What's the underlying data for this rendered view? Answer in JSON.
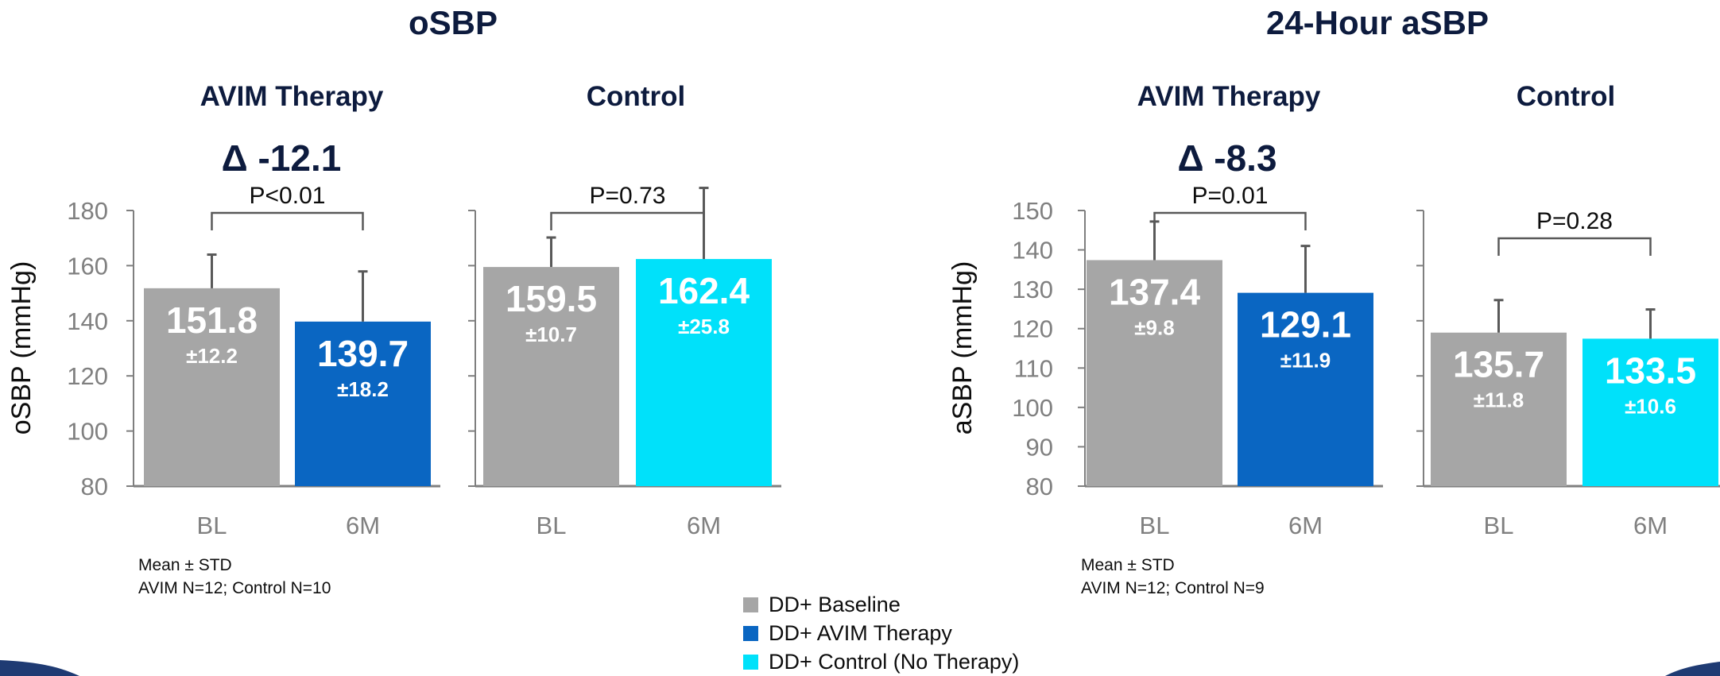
{
  "colors": {
    "baseline": "#A6A6A6",
    "avim": "#0A66C2",
    "control": "#00E1FA",
    "title": "#0D1B3E",
    "axis": "#7F7F7F",
    "tick": "#808080",
    "bracket": "#595959",
    "error": "#595959",
    "swoosh": "#1F3B73"
  },
  "sections": [
    {
      "title": "oSBP",
      "ylabel": "oSBP (mmHg)",
      "footnote": [
        "Mean  ±  STD",
        "AVIM N=12; Control N=10"
      ]
    },
    {
      "title": "24-Hour aSBP",
      "ylabel": "aSBP (mmHg)",
      "footnote": [
        "Mean  ±  STD",
        "AVIM N=12; Control N=9"
      ]
    }
  ],
  "legend": {
    "items": [
      {
        "label": "DD+ Baseline",
        "color": "#A6A6A6"
      },
      {
        "label": "DD+ AVIM Therapy",
        "color": "#0A66C2"
      },
      {
        "label": "DD+ Control (No Therapy)",
        "color": "#00E1FA"
      }
    ]
  },
  "chart_data": [
    {
      "type": "bar",
      "title": "AVIM Therapy",
      "section": 0,
      "categories": [
        "BL",
        "6M"
      ],
      "values": [
        151.8,
        139.7
      ],
      "errors": [
        12.2,
        18.2
      ],
      "value_labels": [
        "151.8",
        "139.7"
      ],
      "error_labels": [
        "±12.2",
        "±18.2"
      ],
      "colors": [
        "#A6A6A6",
        "#0A66C2"
      ],
      "delta": "Δ -12.1",
      "pvalue": "P<0.01",
      "ylim": [
        80,
        180
      ],
      "yticks": [
        80,
        100,
        120,
        140,
        160,
        180
      ],
      "show_tick_labels": true
    },
    {
      "type": "bar",
      "title": "Control",
      "section": 0,
      "categories": [
        "BL",
        "6M"
      ],
      "values": [
        159.5,
        162.4
      ],
      "errors": [
        10.7,
        25.8
      ],
      "value_labels": [
        "159.5",
        "162.4"
      ],
      "error_labels": [
        "±10.7",
        "±25.8"
      ],
      "colors": [
        "#A6A6A6",
        "#00E1FA"
      ],
      "pvalue": "P=0.73",
      "ylim": [
        80,
        180
      ],
      "yticks": [
        80,
        100,
        120,
        140,
        160,
        180
      ],
      "show_tick_labels": false
    },
    {
      "type": "bar",
      "title": "AVIM Therapy",
      "section": 1,
      "categories": [
        "BL",
        "6M"
      ],
      "values": [
        137.4,
        129.1
      ],
      "errors": [
        9.8,
        11.9
      ],
      "value_labels": [
        "137.4",
        "129.1"
      ],
      "error_labels": [
        "±9.8",
        "±11.9"
      ],
      "colors": [
        "#A6A6A6",
        "#0A66C2"
      ],
      "delta": "Δ -8.3",
      "pvalue": "P=0.01",
      "ylim": [
        80,
        150
      ],
      "yticks": [
        80,
        90,
        100,
        110,
        120,
        130,
        140,
        150
      ],
      "show_tick_labels": true
    },
    {
      "type": "bar",
      "title": "Control",
      "section": 1,
      "categories": [
        "BL",
        "6M"
      ],
      "values": [
        135.7,
        133.5
      ],
      "errors": [
        11.8,
        10.6
      ],
      "value_labels": [
        "135.7",
        "133.5"
      ],
      "error_labels": [
        "±11.8",
        "±10.6"
      ],
      "colors": [
        "#A6A6A6",
        "#00E1FA"
      ],
      "pvalue": "P=0.28",
      "ylim": [
        80,
        180
      ],
      "yticks": [
        80,
        100,
        120,
        140,
        160,
        180
      ],
      "show_tick_labels": false
    }
  ]
}
